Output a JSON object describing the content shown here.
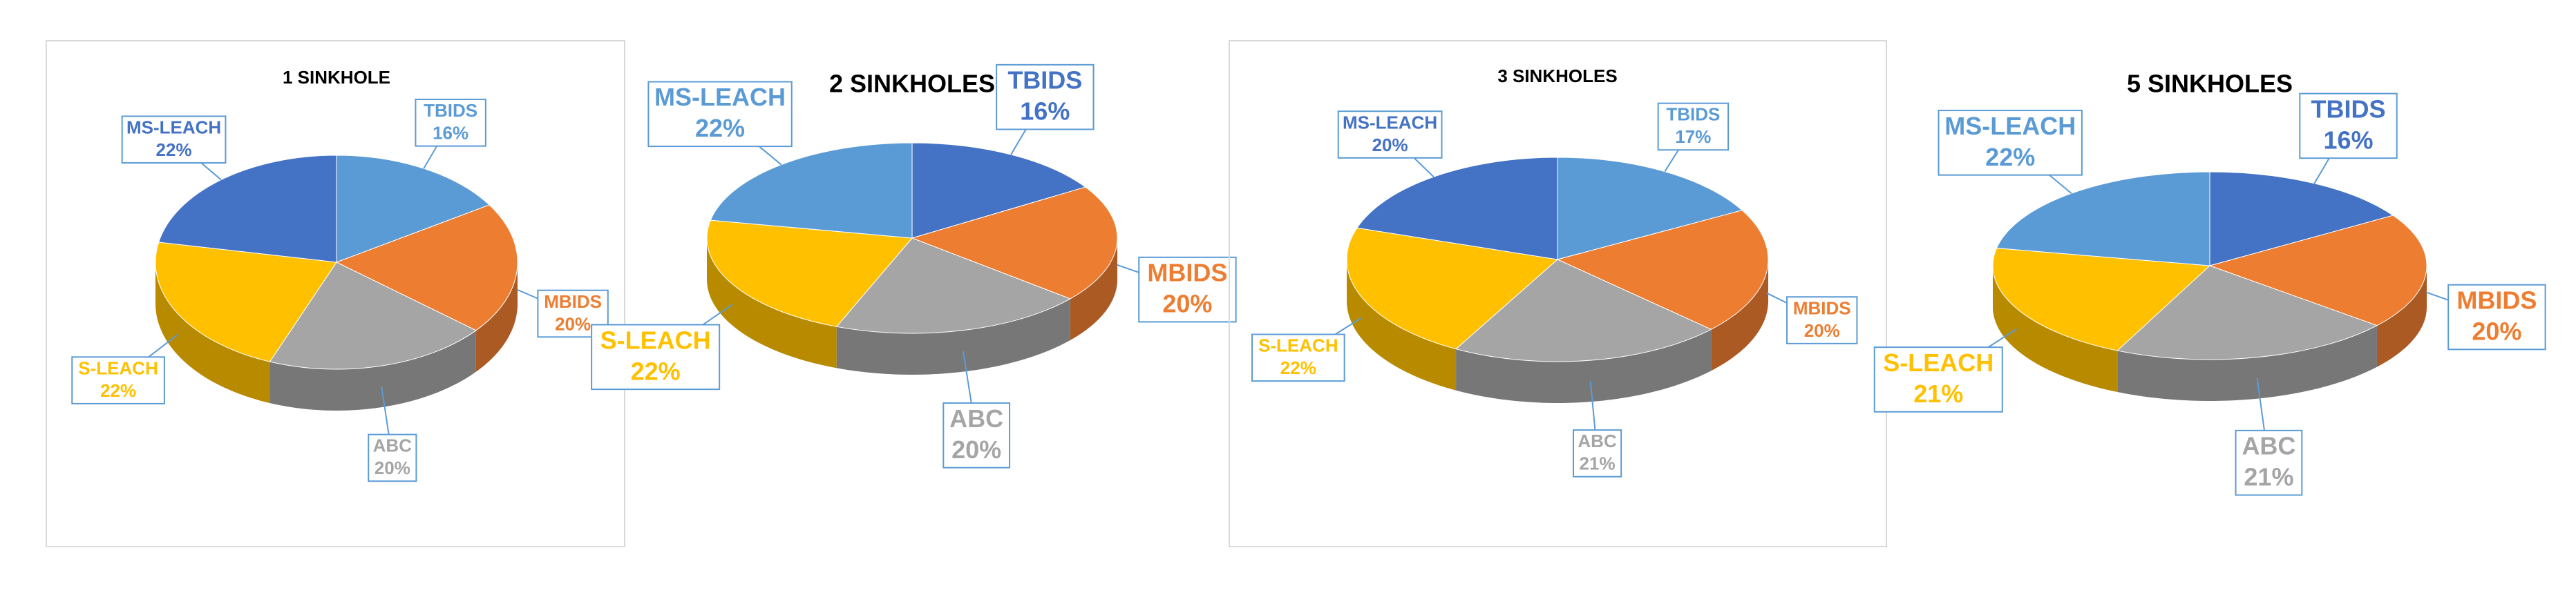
{
  "chart_data": [
    {
      "type": "pie",
      "title": "1 SINKHOLE",
      "border": true,
      "categories": [
        "TBIDS",
        "MBIDS",
        "ABC",
        "S-LEACH",
        "MS-LEACH"
      ],
      "values": [
        16,
        20,
        20,
        22,
        22
      ],
      "value_labels": [
        "16%",
        "20%",
        "20%",
        "22%",
        "22%"
      ],
      "colors": [
        "#5b9bd5",
        "#ed7d31",
        "#a5a5a5",
        "#ffc000",
        "#4472c4"
      ]
    },
    {
      "type": "pie",
      "title": "2 SINKHOLES",
      "border": false,
      "categories": [
        "TBIDS",
        "MBIDS",
        "ABC",
        "S-LEACH",
        "MS-LEACH"
      ],
      "values": [
        16,
        20,
        20,
        22,
        22
      ],
      "value_labels": [
        "16%",
        "20%",
        "20%",
        "22%",
        "22%"
      ],
      "colors": [
        "#4472c4",
        "#ed7d31",
        "#a5a5a5",
        "#ffc000",
        "#5b9bd5"
      ]
    },
    {
      "type": "pie",
      "title": "3 SINKHOLES",
      "border": true,
      "categories": [
        "TBIDS",
        "MBIDS",
        "ABC",
        "S-LEACH",
        "MS-LEACH"
      ],
      "values": [
        17,
        20,
        21,
        22,
        20
      ],
      "value_labels": [
        "17%",
        "20%",
        "21%",
        "22%",
        "20%"
      ],
      "colors": [
        "#5b9bd5",
        "#ed7d31",
        "#a5a5a5",
        "#ffc000",
        "#4472c4"
      ]
    },
    {
      "type": "pie",
      "title": "5 SINKHOLES",
      "border": false,
      "categories": [
        "TBIDS",
        "MBIDS",
        "ABC",
        "S-LEACH",
        "MS-LEACH"
      ],
      "values": [
        16,
        20,
        21,
        21,
        22
      ],
      "value_labels": [
        "16%",
        "20%",
        "21%",
        "21%",
        "22%"
      ],
      "colors": [
        "#4472c4",
        "#ed7d31",
        "#a5a5a5",
        "#ffc000",
        "#5b9bd5"
      ]
    }
  ]
}
